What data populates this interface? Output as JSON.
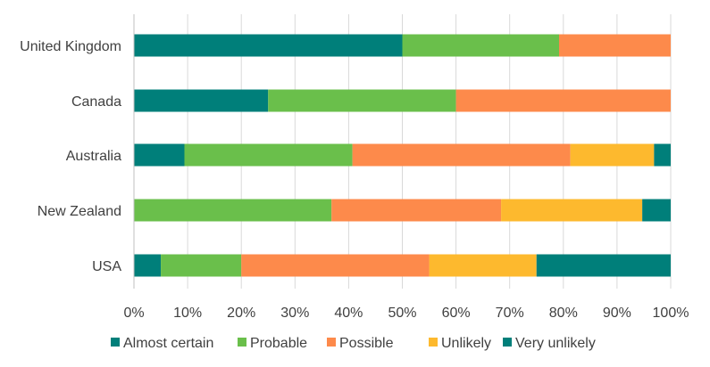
{
  "chart_data": {
    "type": "bar",
    "orientation": "horizontal",
    "stacked": "percent",
    "title": "",
    "xlabel": "",
    "ylabel": "",
    "xlim": [
      0,
      100
    ],
    "x_ticks": [
      "0%",
      "10%",
      "20%",
      "30%",
      "40%",
      "50%",
      "60%",
      "70%",
      "80%",
      "90%",
      "100%"
    ],
    "grid": "vertical",
    "legend_position": "bottom",
    "categories": [
      "United Kingdom",
      "Canada",
      "Australia",
      "New Zealand",
      "USA"
    ],
    "series": [
      {
        "name": "Almost certain",
        "color": "#007F7A",
        "values": [
          50,
          25,
          9.4,
          0,
          5
        ]
      },
      {
        "name": "Probable",
        "color": "#6ABF4B",
        "values": [
          29.2,
          35,
          31.3,
          36.8,
          15
        ]
      },
      {
        "name": "Possible",
        "color": "#FD8A4B",
        "values": [
          20.8,
          40,
          40.6,
          31.6,
          35
        ]
      },
      {
        "name": "Unlikely",
        "color": "#FDB92E",
        "values": [
          0,
          0,
          15.6,
          26.3,
          20
        ]
      },
      {
        "name": "Very unlikely",
        "color": "#007F7A",
        "values": [
          0,
          0,
          3.1,
          5.3,
          25
        ]
      }
    ]
  }
}
